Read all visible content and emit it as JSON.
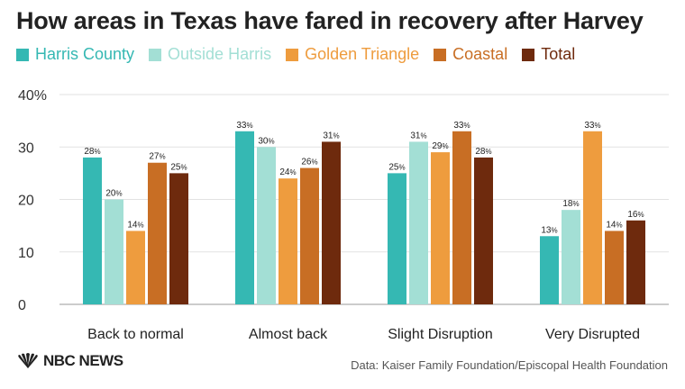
{
  "header": {
    "title": "How areas in Texas have fared in recovery after Harvey"
  },
  "footer": {
    "source": "Data: Kaiser Family Foundation/Episcopal Health Foundation",
    "logo_text": "NBC NEWS"
  },
  "chart_data": {
    "type": "bar",
    "title": "How areas in Texas have fared in recovery after Harvey",
    "xlabel": "",
    "ylabel": "",
    "ylim": [
      0,
      40
    ],
    "yticks": [
      "0",
      "10",
      "20",
      "30",
      "40%"
    ],
    "ytick_values": [
      0,
      10,
      20,
      30,
      40
    ],
    "grid": true,
    "legend_position": "top-left",
    "categories": [
      "Back to normal",
      "Almost back",
      "Slight Disruption",
      "Very Disrupted"
    ],
    "series": [
      {
        "name": "Harris County",
        "color": "#35b8b3",
        "values": [
          28,
          33,
          25,
          13
        ]
      },
      {
        "name": "Outside Harris",
        "color": "#a3dfd5",
        "values": [
          20,
          30,
          31,
          18
        ]
      },
      {
        "name": "Golden Triangle",
        "color": "#ee9c3e",
        "values": [
          14,
          24,
          29,
          33
        ]
      },
      {
        "name": "Coastal",
        "color": "#c86e24",
        "values": [
          27,
          26,
          33,
          14
        ]
      },
      {
        "name": "Total",
        "color": "#6e2a0d",
        "values": [
          25,
          31,
          28,
          16
        ]
      }
    ]
  }
}
